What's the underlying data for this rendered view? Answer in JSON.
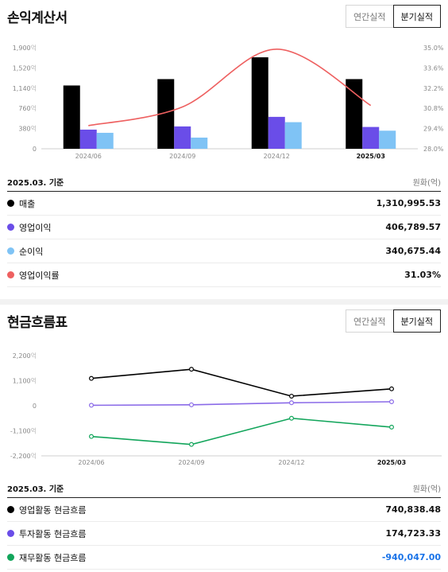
{
  "income": {
    "title": "손익계산서",
    "toggle": {
      "annual": "연간실적",
      "quarterly": "분기실적"
    },
    "basis": "2025.03. 기준",
    "unit": "원화(억)",
    "legend": [
      {
        "label": "매출",
        "value": "1,310,995.53",
        "color": "#000000"
      },
      {
        "label": "영업이익",
        "value": "406,789.57",
        "color": "#6a4de8"
      },
      {
        "label": "순이익",
        "value": "340,675.44",
        "color": "#7fc3f5"
      },
      {
        "label": "영업이익률",
        "value": "31.03%",
        "color": "#ee6060"
      }
    ]
  },
  "cashflow": {
    "title": "현금흐름표",
    "toggle": {
      "annual": "연간실적",
      "quarterly": "분기실적"
    },
    "basis": "2025.03. 기준",
    "unit": "원화(억)",
    "legend": [
      {
        "label": "영업활동 현금흐름",
        "value": "740,838.48",
        "color": "#000000",
        "negative": false
      },
      {
        "label": "투자활동 현금흐름",
        "value": "174,723.33",
        "color": "#6a4de8",
        "negative": false
      },
      {
        "label": "재무활동 현금흐름",
        "value": "-940,047.00",
        "color": "#12a55b",
        "negative": true
      }
    ]
  },
  "chart_data": [
    {
      "type": "bar",
      "categories": [
        "2024/06",
        "2024/09",
        "2024/12",
        "2025/03"
      ],
      "bold_category": "2025/03",
      "y_ticks": [
        "1,900억",
        "1,520억",
        "1,140억",
        "760억",
        "380억",
        "0"
      ],
      "y_tick_values": [
        1900,
        1520,
        1140,
        760,
        380,
        0
      ],
      "ylim": [
        0,
        1900
      ],
      "y2_ticks": [
        "35.0%",
        "33.6%",
        "32.2%",
        "30.8%",
        "29.4%",
        "28.0%"
      ],
      "y2_tick_values": [
        35.0,
        33.6,
        32.2,
        30.8,
        29.4,
        28.0
      ],
      "y2lim": [
        28.0,
        35.0
      ],
      "series": [
        {
          "name": "매출",
          "color": "#000000",
          "values": [
            1190,
            1310,
            1720,
            1310
          ]
        },
        {
          "name": "영업이익",
          "color": "#6a4de8",
          "values": [
            360,
            420,
            600,
            410
          ]
        },
        {
          "name": "순이익",
          "color": "#7fc3f5",
          "values": [
            300,
            210,
            500,
            340
          ]
        }
      ],
      "line_series": {
        "name": "영업이익률",
        "color": "#ee6060",
        "values": [
          29.6,
          30.9,
          34.9,
          31.0
        ]
      }
    },
    {
      "type": "line",
      "categories": [
        "2024/06",
        "2024/09",
        "2024/12",
        "2025/03"
      ],
      "bold_category": "2025/03",
      "y_ticks": [
        "2,200억",
        "1,100억",
        "0",
        "-1,100억",
        "-2,200억"
      ],
      "y_tick_values": [
        2200,
        1100,
        0,
        -1100,
        -2200
      ],
      "ylim": [
        -2200,
        2200
      ],
      "series": [
        {
          "name": "영업활동 현금흐름",
          "color": "#000000",
          "values": [
            1200,
            1600,
            420,
            740
          ]
        },
        {
          "name": "투자활동 현금흐름",
          "color": "#8a6ae8",
          "values": [
            20,
            40,
            130,
            175
          ]
        },
        {
          "name": "재무활동 현금흐름",
          "color": "#12a55b",
          "values": [
            -1350,
            -1700,
            -550,
            -940
          ]
        }
      ]
    }
  ]
}
